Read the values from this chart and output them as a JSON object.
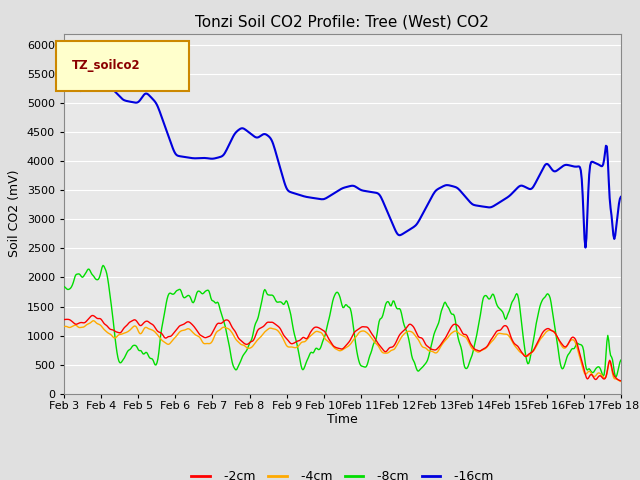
{
  "title": "Tonzi Soil CO2 Profile: Tree (West) CO2",
  "ylabel": "Soil CO2 (mV)",
  "xlabel": "Time",
  "legend_label": "TZ_soilco2",
  "background_color": "#e0e0e0",
  "plot_bg_color": "#e8e8e8",
  "ylim": [
    0,
    6200
  ],
  "yticks": [
    0,
    500,
    1000,
    1500,
    2000,
    2500,
    3000,
    3500,
    4000,
    4500,
    5000,
    5500,
    6000
  ],
  "series": {
    "-2cm": {
      "color": "#ff0000",
      "linewidth": 1.0
    },
    "-4cm": {
      "color": "#ffaa00",
      "linewidth": 1.0
    },
    "-8cm": {
      "color": "#00dd00",
      "linewidth": 1.0
    },
    "-16cm": {
      "color": "#0000dd",
      "linewidth": 1.5
    }
  },
  "legend_box_color": "#ffffcc",
  "legend_box_edge": "#cc8800",
  "title_fontsize": 11,
  "axis_label_fontsize": 9,
  "tick_label_fontsize": 8,
  "n_points": 600
}
